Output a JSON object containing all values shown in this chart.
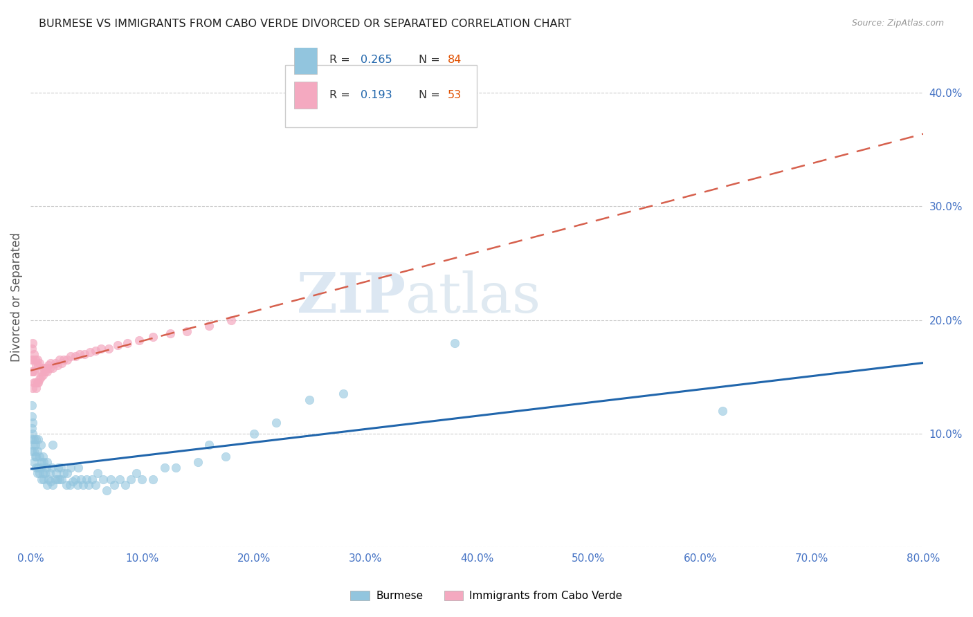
{
  "title": "BURMESE VS IMMIGRANTS FROM CABO VERDE DIVORCED OR SEPARATED CORRELATION CHART",
  "source": "Source: ZipAtlas.com",
  "ylabel_label": "Divorced or Separated",
  "xlim": [
    0.0,
    0.8
  ],
  "ylim": [
    0.0,
    0.44
  ],
  "color_burmese": "#92c5de",
  "color_cabo_verde": "#f4a9c0",
  "trendline_burmese_color": "#2166ac",
  "trendline_cabo_verde_color": "#d6604d",
  "watermark_zip": "ZIP",
  "watermark_atlas": "atlas",
  "burmese_x": [
    0.001,
    0.001,
    0.001,
    0.001,
    0.001,
    0.002,
    0.002,
    0.002,
    0.003,
    0.003,
    0.003,
    0.004,
    0.004,
    0.005,
    0.005,
    0.005,
    0.006,
    0.006,
    0.007,
    0.007,
    0.008,
    0.008,
    0.009,
    0.009,
    0.01,
    0.01,
    0.011,
    0.011,
    0.012,
    0.012,
    0.013,
    0.014,
    0.015,
    0.015,
    0.016,
    0.017,
    0.018,
    0.019,
    0.02,
    0.02,
    0.022,
    0.023,
    0.024,
    0.025,
    0.026,
    0.027,
    0.028,
    0.03,
    0.032,
    0.033,
    0.035,
    0.036,
    0.038,
    0.04,
    0.042,
    0.043,
    0.045,
    0.047,
    0.05,
    0.052,
    0.055,
    0.058,
    0.06,
    0.065,
    0.068,
    0.072,
    0.075,
    0.08,
    0.085,
    0.09,
    0.095,
    0.1,
    0.11,
    0.12,
    0.13,
    0.15,
    0.16,
    0.175,
    0.2,
    0.22,
    0.25,
    0.28,
    0.38,
    0.62
  ],
  "burmese_y": [
    0.085,
    0.095,
    0.105,
    0.115,
    0.125,
    0.09,
    0.1,
    0.11,
    0.075,
    0.085,
    0.095,
    0.08,
    0.09,
    0.07,
    0.08,
    0.095,
    0.065,
    0.085,
    0.07,
    0.095,
    0.065,
    0.08,
    0.07,
    0.09,
    0.06,
    0.075,
    0.065,
    0.08,
    0.06,
    0.075,
    0.065,
    0.07,
    0.055,
    0.075,
    0.06,
    0.065,
    0.058,
    0.07,
    0.055,
    0.09,
    0.06,
    0.065,
    0.06,
    0.07,
    0.06,
    0.07,
    0.06,
    0.065,
    0.055,
    0.065,
    0.055,
    0.07,
    0.058,
    0.06,
    0.055,
    0.07,
    0.06,
    0.055,
    0.06,
    0.055,
    0.06,
    0.055,
    0.065,
    0.06,
    0.05,
    0.06,
    0.055,
    0.06,
    0.055,
    0.06,
    0.065,
    0.06,
    0.06,
    0.07,
    0.07,
    0.075,
    0.09,
    0.08,
    0.1,
    0.11,
    0.13,
    0.135,
    0.18,
    0.12
  ],
  "cabo_x": [
    0.001,
    0.001,
    0.001,
    0.002,
    0.002,
    0.002,
    0.002,
    0.003,
    0.003,
    0.003,
    0.004,
    0.004,
    0.005,
    0.005,
    0.006,
    0.006,
    0.007,
    0.007,
    0.008,
    0.008,
    0.009,
    0.01,
    0.011,
    0.012,
    0.013,
    0.014,
    0.015,
    0.016,
    0.017,
    0.018,
    0.02,
    0.022,
    0.024,
    0.026,
    0.028,
    0.03,
    0.033,
    0.036,
    0.04,
    0.044,
    0.048,
    0.053,
    0.058,
    0.063,
    0.07,
    0.078,
    0.087,
    0.097,
    0.11,
    0.125,
    0.14,
    0.16,
    0.18
  ],
  "cabo_y": [
    0.155,
    0.165,
    0.175,
    0.14,
    0.155,
    0.165,
    0.18,
    0.145,
    0.155,
    0.17,
    0.145,
    0.165,
    0.14,
    0.16,
    0.145,
    0.165,
    0.145,
    0.16,
    0.148,
    0.162,
    0.15,
    0.155,
    0.152,
    0.158,
    0.155,
    0.158,
    0.155,
    0.16,
    0.158,
    0.162,
    0.158,
    0.162,
    0.16,
    0.165,
    0.162,
    0.165,
    0.165,
    0.168,
    0.168,
    0.17,
    0.17,
    0.172,
    0.173,
    0.175,
    0.175,
    0.178,
    0.18,
    0.182,
    0.185,
    0.188,
    0.19,
    0.195,
    0.2
  ],
  "trendline_burmese": [
    0.087,
    0.2
  ],
  "trendline_cabo": [
    0.13,
    0.25
  ],
  "x_ticks": [
    0.0,
    0.1,
    0.2,
    0.3,
    0.4,
    0.5,
    0.6,
    0.7,
    0.8
  ],
  "y_ticks_right": [
    0.1,
    0.2,
    0.3,
    0.4
  ],
  "legend_items": [
    {
      "color": "#92c5de",
      "r": "0.265",
      "n": "84"
    },
    {
      "color": "#f4a9c0",
      "r": "0.193",
      "n": "53"
    }
  ]
}
